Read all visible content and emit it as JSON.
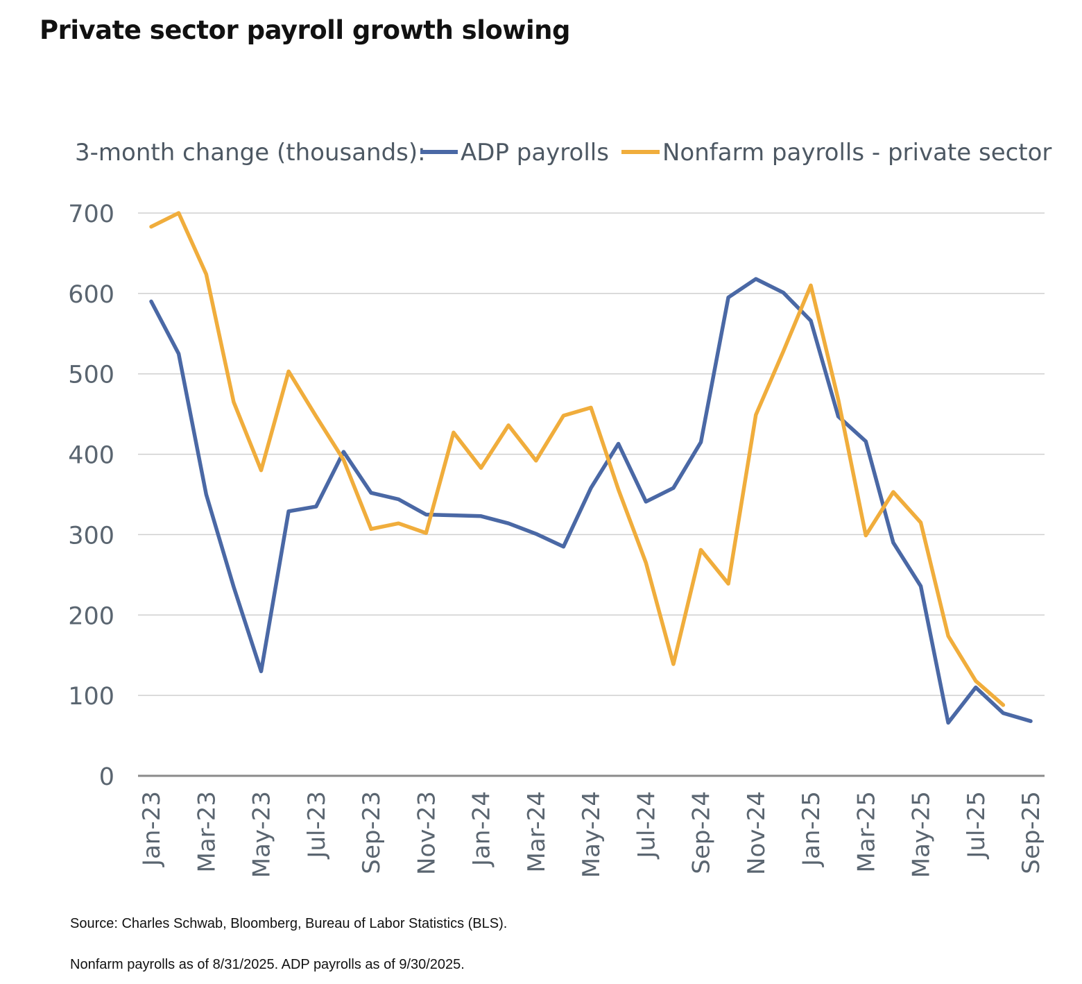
{
  "title": "Private sector payroll growth slowing",
  "footnotes": {
    "source": "Source: Charles Schwab, Bloomberg, Bureau of Labor Statistics (BLS).",
    "asof": "Nonfarm payrolls as of 8/31/2025. ADP payrolls as of 9/30/2025."
  },
  "chart_data": {
    "type": "line",
    "legend_title": "3-month change (thousands):",
    "legend_placement": "top",
    "grid": true,
    "ylim": [
      0,
      700
    ],
    "yticks": [
      0,
      100,
      200,
      300,
      400,
      500,
      600,
      700
    ],
    "x": [
      "Jan-23",
      "Feb-23",
      "Mar-23",
      "Apr-23",
      "May-23",
      "Jun-23",
      "Jul-23",
      "Aug-23",
      "Sep-23",
      "Oct-23",
      "Nov-23",
      "Dec-23",
      "Jan-24",
      "Feb-24",
      "Mar-24",
      "Apr-24",
      "May-24",
      "Jun-24",
      "Jul-24",
      "Aug-24",
      "Sep-24",
      "Oct-24",
      "Nov-24",
      "Dec-24",
      "Jan-25",
      "Feb-25",
      "Mar-25",
      "Apr-25",
      "May-25",
      "Jun-25",
      "Jul-25",
      "Aug-25",
      "Sep-25"
    ],
    "x_tick_labels": [
      "Jan-23",
      "Mar-23",
      "May-23",
      "Jul-23",
      "Sep-23",
      "Nov-23",
      "Jan-24",
      "Mar-24",
      "May-24",
      "Jul-24",
      "Sep-24",
      "Nov-24",
      "Jan-25",
      "Mar-25",
      "May-25",
      "Jul-25",
      "Sep-25"
    ],
    "series": [
      {
        "name": "ADP payrolls",
        "color": "#4a68a5",
        "values": [
          590,
          525,
          350,
          235,
          130,
          329,
          335,
          403,
          352,
          344,
          325,
          324,
          323,
          314,
          301,
          285,
          358,
          413,
          341,
          358,
          415,
          595,
          618,
          601,
          566,
          447,
          416,
          290,
          236,
          66,
          110,
          78,
          68
        ]
      },
      {
        "name": "Nonfarm payrolls - private sector",
        "color": "#f0ad3c",
        "values": [
          683,
          700,
          624,
          465,
          380,
          503,
          447,
          393,
          307,
          314,
          302,
          427,
          383,
          436,
          392,
          448,
          458,
          356,
          265,
          139,
          281,
          239,
          449,
          528,
          610,
          468,
          299,
          353,
          315,
          174,
          118,
          88,
          null
        ]
      }
    ]
  }
}
